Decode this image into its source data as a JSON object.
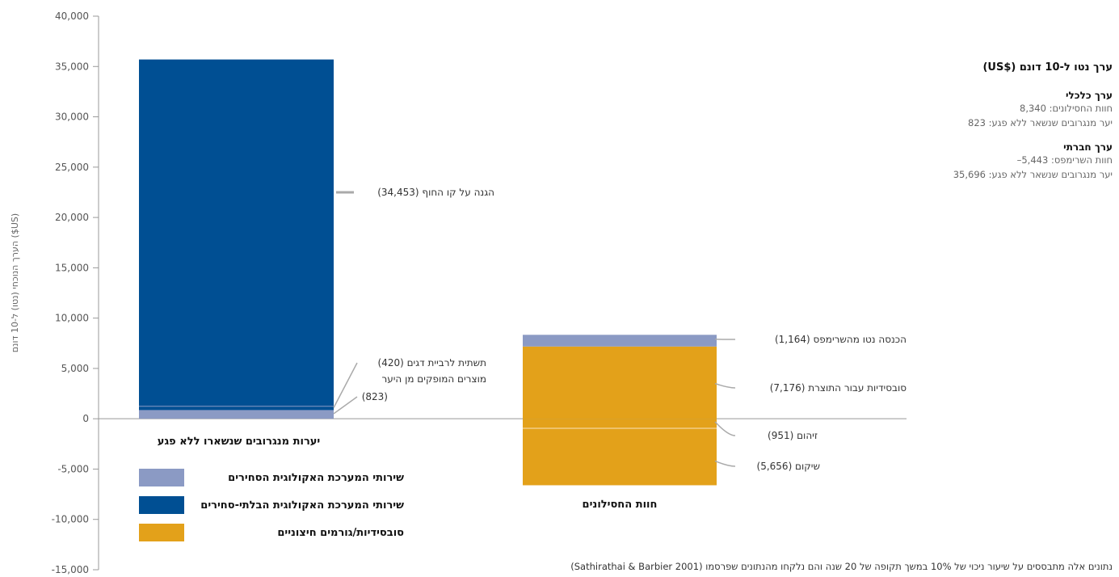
{
  "chart_data": {
    "type": "bar",
    "ylabel": "הערך הנוכחי (נטו) ל-10 דונם ($US)",
    "ylim": [
      -15000,
      40000
    ],
    "yticks": [
      -15000,
      -10000,
      -5000,
      0,
      5000,
      10000,
      15000,
      20000,
      25000,
      30000,
      35000,
      40000
    ],
    "ytick_labels": [
      "-15,000",
      "-10,000",
      "-5,000",
      "0",
      "5,000",
      "10,000",
      "15,000",
      "20,000",
      "25,000",
      "30,000",
      "35,000",
      "40,000"
    ],
    "categories": [
      "יערות מנגרובים שנשארו ללא פגע",
      "חוות החסילונים"
    ],
    "bars": [
      {
        "category": "יערות מנגרובים שנשארו ללא פגע",
        "segments": [
          {
            "name": "מוצרים המופקים מן היער",
            "type": "marketed",
            "value": 823,
            "label": "(823)"
          },
          {
            "name": "תשתית לרביית דגים",
            "type": "non_marketed",
            "value": 420,
            "label": "תשתית לרביית דגים  (420)"
          },
          {
            "name": "הגנה על קו החוף",
            "type": "non_marketed",
            "value": 34453,
            "label": "הגנה על קו החוף (34,453)"
          }
        ]
      },
      {
        "category": "חוות החסילונים",
        "segments": [
          {
            "name": "סובסידיות עבור התוצרת",
            "type": "subsidy",
            "value": 7176,
            "label": "סובסידיות עבור התוצרת (7,176)"
          },
          {
            "name": "הכנסה נטו מהשרימפס",
            "type": "marketed",
            "value": 1164,
            "label": "הכנסה נטו מהשרימפס (1,164)"
          },
          {
            "name": "זיהום",
            "type": "subsidy",
            "value": -951,
            "label": "זיהום (951)"
          },
          {
            "name": "שיקום",
            "type": "subsidy",
            "value": -5656,
            "label": "שיקום (5,656)"
          }
        ]
      }
    ],
    "legend": [
      {
        "key": "marketed",
        "label": "שירותי המערכת האקולוגית הסחירים",
        "color": "#8b9ac4"
      },
      {
        "key": "non_marketed",
        "label": "שירותי המערכת האקולוגית הבלתי-סחירים",
        "color": "#004f93"
      },
      {
        "key": "subsidy",
        "label": "סובסידיות/גורמים חיצוניים",
        "color": "#e3a11a"
      }
    ],
    "extra_label": "מוצרים המופקים מן היער"
  },
  "side_panel": {
    "title": "ערך נטו ל-10 דונם ($US)",
    "groups": [
      {
        "heading": "ערך כלכלי",
        "lines": [
          "חוות החסילונים: 8,340",
          "יער מנגרובים שנשאר ללא פגע: 823"
        ]
      },
      {
        "heading": "ערך חברתי",
        "lines": [
          "חוות השרימפס: 5,443–",
          "יער מנגרובים שנשאר ללא פגע: 35,696"
        ]
      }
    ]
  },
  "footnote": "נתונים אלה מתבססים על שיעור ניכוי של 10% במשך תקופה של 20 שנה והם נלקחו מהנתונים שפרסמו (Sathirathai & Barbier 2001)"
}
